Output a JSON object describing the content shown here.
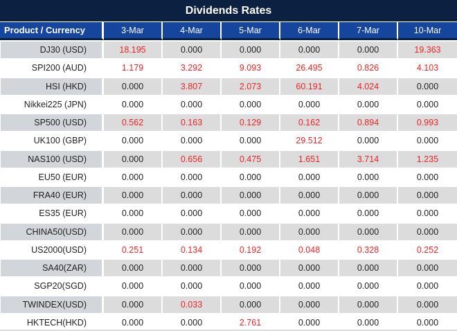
{
  "title": "Dividends Rates",
  "colors": {
    "title_bg": "#0c2142",
    "header_bg": "#15459c",
    "row_alt_bg": "#dcdcdc",
    "row_alt_product_bg": "#d2d5da",
    "red": "#f02323",
    "text_dark": "#1e1e1e",
    "header_text": "#ffffff"
  },
  "table": {
    "header": [
      "Product / Currency",
      "3-Mar",
      "4-Mar",
      "5-Mar",
      "6-Mar",
      "7-Mar",
      "10-Mar"
    ],
    "rows": [
      {
        "product": "DJ30 (USD)",
        "values": [
          "18.195",
          "0.000",
          "0.000",
          "0.000",
          "0.000",
          "19.363"
        ],
        "red": [
          true,
          false,
          false,
          false,
          false,
          true
        ]
      },
      {
        "product": "SPI200 (AUD)",
        "values": [
          "1.179",
          "3.292",
          "9.093",
          "26.495",
          "0.826",
          "4.103"
        ],
        "red": [
          true,
          true,
          true,
          true,
          true,
          true
        ]
      },
      {
        "product": "HSI (HKD)",
        "values": [
          "0.000",
          "3.807",
          "2.073",
          "60.191",
          "4.024",
          "0.000"
        ],
        "red": [
          false,
          true,
          true,
          true,
          true,
          false
        ]
      },
      {
        "product": "Nikkei225 (JPN)",
        "values": [
          "0.000",
          "0.000",
          "0.000",
          "0.000",
          "0.000",
          "0.000"
        ],
        "red": [
          false,
          false,
          false,
          false,
          false,
          false
        ]
      },
      {
        "product": "SP500 (USD)",
        "values": [
          "0.562",
          "0.163",
          "0.129",
          "0.162",
          "0.894",
          "0.993"
        ],
        "red": [
          true,
          true,
          true,
          true,
          true,
          true
        ]
      },
      {
        "product": "UK100 (GBP)",
        "values": [
          "0.000",
          "0.000",
          "0.000",
          "29.512",
          "0.000",
          "0.000"
        ],
        "red": [
          false,
          false,
          false,
          true,
          false,
          false
        ]
      },
      {
        "product": "NAS100 (USD)",
        "values": [
          "0.000",
          "0.656",
          "0.475",
          "1.651",
          "3.714",
          "1.235"
        ],
        "red": [
          false,
          true,
          true,
          true,
          true,
          true
        ]
      },
      {
        "product": "EU50 (EUR)",
        "values": [
          "0.000",
          "0.000",
          "0.000",
          "0.000",
          "0.000",
          "0.000"
        ],
        "red": [
          false,
          false,
          false,
          false,
          false,
          false
        ]
      },
      {
        "product": "FRA40 (EUR)",
        "values": [
          "0.000",
          "0.000",
          "0.000",
          "0.000",
          "0.000",
          "0.000"
        ],
        "red": [
          false,
          false,
          false,
          false,
          false,
          false
        ]
      },
      {
        "product": "ES35 (EUR)",
        "values": [
          "0.000",
          "0.000",
          "0.000",
          "0.000",
          "0.000",
          "0.000"
        ],
        "red": [
          false,
          false,
          false,
          false,
          false,
          false
        ]
      },
      {
        "product": "CHINA50(USD)",
        "values": [
          "0.000",
          "0.000",
          "0.000",
          "0.000",
          "0.000",
          "0.000"
        ],
        "red": [
          false,
          false,
          false,
          false,
          false,
          false
        ]
      },
      {
        "product": "US2000(USD)",
        "values": [
          "0.251",
          "0.134",
          "0.192",
          "0.048",
          "0.328",
          "0.252"
        ],
        "red": [
          true,
          true,
          true,
          true,
          true,
          true
        ]
      },
      {
        "product": "SA40(ZAR)",
        "values": [
          "0.000",
          "0.000",
          "0.000",
          "0.000",
          "0.000",
          "0.000"
        ],
        "red": [
          false,
          false,
          false,
          false,
          false,
          false
        ]
      },
      {
        "product": "SGP20(SGD)",
        "values": [
          "0.000",
          "0.000",
          "0.000",
          "0.000",
          "0.000",
          "0.000"
        ],
        "red": [
          false,
          false,
          false,
          false,
          false,
          false
        ]
      },
      {
        "product": "TWINDEX(USD)",
        "values": [
          "0.000",
          "0.033",
          "0.000",
          "0.000",
          "0.000",
          "0.000"
        ],
        "red": [
          false,
          true,
          false,
          false,
          false,
          false
        ]
      },
      {
        "product": "HKTECH(HKD)",
        "values": [
          "0.000",
          "0.000",
          "2.761",
          "0.000",
          "0.000",
          "0.000"
        ],
        "red": [
          false,
          false,
          true,
          false,
          false,
          false
        ]
      }
    ]
  }
}
